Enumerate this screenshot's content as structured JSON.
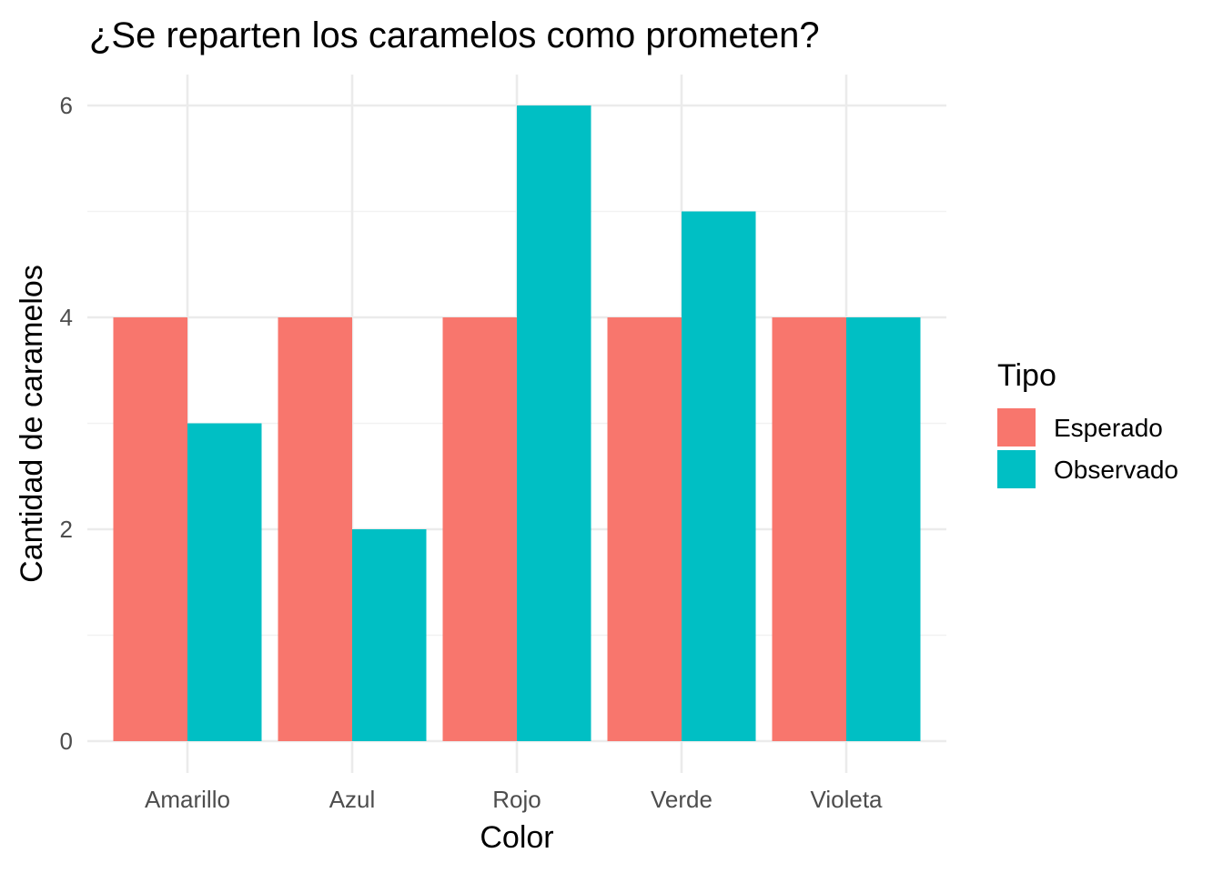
{
  "chart_data": {
    "type": "bar",
    "title": "¿Se reparten los caramelos como prometen?",
    "xlabel": "Color",
    "ylabel": "Cantidad de caramelos",
    "categories": [
      "Amarillo",
      "Azul",
      "Rojo",
      "Verde",
      "Violeta"
    ],
    "series": [
      {
        "name": "Esperado",
        "values": [
          4,
          4,
          4,
          4,
          4
        ],
        "color": "#F8766D"
      },
      {
        "name": "Observado",
        "values": [
          3,
          2,
          6,
          5,
          4
        ],
        "color": "#00BFC4"
      }
    ],
    "ylim": [
      0,
      6
    ],
    "yticks": [
      0,
      2,
      4,
      6
    ],
    "legend": {
      "title": "Tipo",
      "placement": "right"
    },
    "grid": true
  }
}
